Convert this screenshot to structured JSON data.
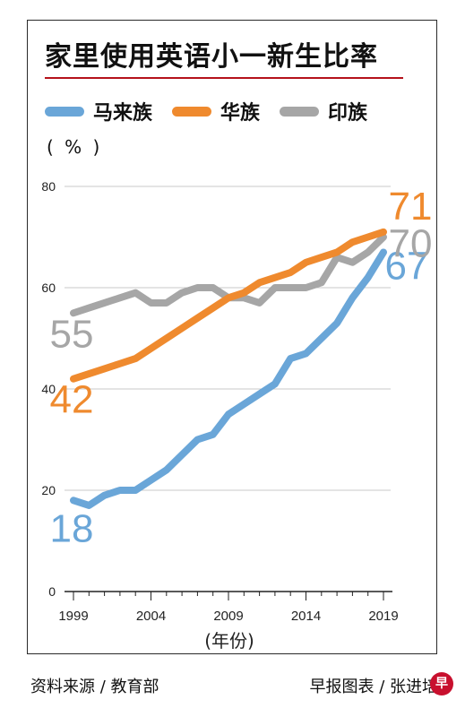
{
  "header": {
    "title": "家里使用英语小一新生比率"
  },
  "legend": [
    {
      "label": "马来族",
      "color": "#6aa6d8"
    },
    {
      "label": "华族",
      "color": "#ef8a2e"
    },
    {
      "label": "印族",
      "color": "#a6a6a6"
    }
  ],
  "unit_label": "( % )",
  "footer": {
    "source": "资料来源 / 教育部",
    "credit": "早报图表 / 张进培",
    "logo_text": "早"
  },
  "chart_data": {
    "type": "line",
    "title": "家里使用英语小一新生比率",
    "xlabel": "(年份)",
    "ylabel": "( % )",
    "x": [
      1999,
      2000,
      2001,
      2002,
      2003,
      2004,
      2005,
      2006,
      2007,
      2008,
      2009,
      2010,
      2011,
      2012,
      2013,
      2014,
      2015,
      2016,
      2017,
      2018,
      2019
    ],
    "xticks": [
      "1999",
      "2004",
      "2009",
      "2014",
      "2019"
    ],
    "yticks": [
      "0",
      "20",
      "40",
      "60",
      "80"
    ],
    "ylim": [
      0,
      80
    ],
    "grid": true,
    "series": [
      {
        "name": "马来族",
        "color": "#6aa6d8",
        "values": [
          18,
          17,
          19,
          20,
          20,
          22,
          24,
          27,
          30,
          31,
          35,
          37,
          39,
          41,
          46,
          47,
          50,
          53,
          58,
          62,
          67
        ],
        "start_label": "18",
        "end_label": "67"
      },
      {
        "name": "华族",
        "color": "#ef8a2e",
        "values": [
          42,
          43,
          44,
          45,
          46,
          48,
          50,
          52,
          54,
          56,
          58,
          59,
          61,
          62,
          63,
          65,
          66,
          67,
          69,
          70,
          71
        ],
        "start_label": "42",
        "end_label": "71"
      },
      {
        "name": "印族",
        "color": "#a6a6a6",
        "values": [
          55,
          56,
          57,
          58,
          59,
          57,
          57,
          59,
          60,
          60,
          58,
          58,
          57,
          60,
          60,
          60,
          61,
          66,
          65,
          67,
          70
        ],
        "start_label": "55",
        "end_label": "70"
      }
    ]
  }
}
